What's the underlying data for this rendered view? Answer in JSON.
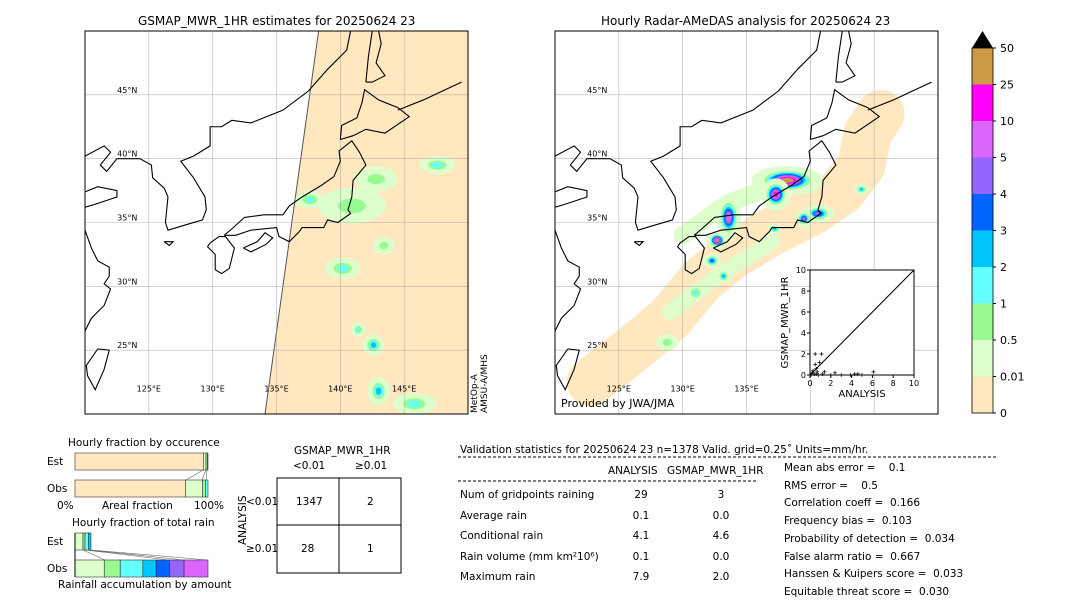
{
  "left_map": {
    "title": "GSMAP_MWR_1HR estimates for 20250624 23",
    "sensor_line1": "MetOp-A",
    "sensor_line2": "AMSU-A/MHS"
  },
  "right_map": {
    "title": "Hourly Radar-AMeDAS analysis for 20250624 23",
    "credit": "Provided by JWA/JMA"
  },
  "map_extent": {
    "lon": [
      120,
      150
    ],
    "lat": [
      20,
      50
    ]
  },
  "lat_labels": [
    "25°N",
    "30°N",
    "35°N",
    "40°N",
    "45°N"
  ],
  "lat_values": [
    25,
    30,
    35,
    40,
    45
  ],
  "lon_labels": [
    "125°E",
    "130°E",
    "135°E",
    "140°E",
    "145°E"
  ],
  "lon_values": [
    125,
    130,
    135,
    140,
    145
  ],
  "colorbar": {
    "labels": [
      "0",
      "0.01",
      "0.5",
      "1",
      "2",
      "3",
      "4",
      "5",
      "10",
      "25",
      "50"
    ],
    "colors": [
      "#ffe8c0",
      "#dcffcc",
      "#98fa90",
      "#64ffff",
      "#00c8ff",
      "#0064ff",
      "#9664ff",
      "#dc64ff",
      "#ff00ff",
      "#cc9944"
    ],
    "extend": "max"
  },
  "rain_cells": {
    "left": [
      [
        141.1,
        36.3,
        1.1,
        0.5,
        5
      ],
      [
        140.9,
        36.3,
        1.9,
        1.0,
        1
      ],
      [
        140.2,
        31.4,
        1.0,
        0.6,
        2
      ],
      [
        142.6,
        25.4,
        0.6,
        0.6,
        3
      ],
      [
        143,
        21.8,
        0.6,
        0.8,
        3
      ],
      [
        145.8,
        20.8,
        1.2,
        0.6,
        2
      ],
      [
        143.4,
        33.2,
        0.6,
        0.5,
        1
      ],
      [
        137.6,
        36.8,
        0.8,
        0.5,
        2
      ],
      [
        142.8,
        38.4,
        1.2,
        0.7,
        1
      ],
      [
        147.6,
        39.5,
        1.0,
        0.5,
        2
      ],
      [
        141.4,
        26.6,
        0.4,
        0.4,
        2
      ]
    ],
    "right": [
      [
        138.2,
        38.3,
        2.0,
        0.8,
        8
      ],
      [
        137.3,
        37.2,
        0.8,
        0.9,
        7
      ],
      [
        133.6,
        35.4,
        0.7,
        1.3,
        6
      ],
      [
        132.7,
        33.6,
        0.6,
        0.5,
        8
      ],
      [
        140.6,
        35.7,
        0.9,
        0.5,
        5
      ],
      [
        139.5,
        35.3,
        0.5,
        0.5,
        5
      ],
      [
        144,
        37.6,
        0.4,
        0.3,
        3
      ],
      [
        132.3,
        32.0,
        0.5,
        0.4,
        4
      ],
      [
        133.2,
        30.8,
        0.4,
        0.4,
        3
      ],
      [
        131,
        29.5,
        0.5,
        0.5,
        2
      ],
      [
        128.8,
        25.6,
        0.6,
        0.5,
        1
      ],
      [
        137.2,
        34.5,
        0.4,
        0.3,
        3
      ]
    ]
  },
  "chart_data": [
    {
      "type": "scatter",
      "xlabel": "ANALYSIS",
      "ylabel": "GSMAP_MWR_1HR",
      "xlim": [
        0,
        10
      ],
      "ylim": [
        0,
        10
      ],
      "x_ticks": [
        "0",
        "2",
        "4",
        "6",
        "8",
        "10"
      ],
      "y_ticks": [
        "0",
        "2",
        "4",
        "6",
        "8",
        "10"
      ],
      "points": [
        [
          0.5,
          2.0
        ],
        [
          1.1,
          2.0
        ],
        [
          0.5,
          1.0
        ],
        [
          0.9,
          1.2
        ],
        [
          0.3,
          0.4
        ],
        [
          0.6,
          0.6
        ],
        [
          0.2,
          0.2
        ],
        [
          0.4,
          0.1
        ],
        [
          0.7,
          0.3
        ],
        [
          1.4,
          0.3
        ],
        [
          2.4,
          0.2
        ],
        [
          3.9,
          0.0
        ],
        [
          4.3,
          0.1
        ],
        [
          4.6,
          0.1
        ],
        [
          6.1,
          0.3
        ],
        [
          0.1,
          0.0
        ],
        [
          0.8,
          0.0
        ],
        [
          1.2,
          0.1
        ],
        [
          2.0,
          0.0
        ],
        [
          3.0,
          0.0
        ],
        [
          5.0,
          0.0
        ],
        [
          0.6,
          0.1
        ]
      ],
      "diagonal": true
    },
    {
      "type": "bar",
      "title": "Hourly fraction by occurence",
      "xlabel": "Areal fraction",
      "x_ticks": [
        "0%",
        "100%"
      ],
      "categories": [
        "Est",
        "Obs"
      ],
      "segments": {
        "Est": [
          0.965,
          0.02,
          0.01,
          0.005
        ],
        "Obs": [
          0.83,
          0.13,
          0.02,
          0.02
        ]
      }
    },
    {
      "type": "bar",
      "title": "Hourly fraction of total rain",
      "xlabel": "Rainfall accumulation by amount",
      "categories": [
        "Est",
        "Obs"
      ],
      "segments": {
        "Est": [
          0.06,
          0.015,
          0.025,
          0.02
        ],
        "Obs": [
          0.22,
          0.12,
          0.17,
          0.1,
          0.1,
          0.11,
          0.18
        ]
      }
    }
  ],
  "contingency": {
    "title": "GSMAP_MWR_1HR",
    "col_headers": [
      "<0.01",
      "≥0.01"
    ],
    "row_label": "ANALYSIS",
    "row_headers": [
      "<0.01",
      "≥0.01"
    ],
    "cells": [
      [
        "1347",
        "2"
      ],
      [
        "28",
        "1"
      ]
    ]
  },
  "validation": {
    "header": "Validation statistics for 20250624 23  n=1378 Valid. grid=0.25˚ Units=mm/hr.",
    "col_headers": [
      "ANALYSIS",
      "GSMAP_MWR_1HR"
    ],
    "rows": [
      {
        "label": "Num of gridpoints raining",
        "a": "29",
        "b": "3"
      },
      {
        "label": "Average rain",
        "a": "0.1",
        "b": "0.0"
      },
      {
        "label": "Conditional rain",
        "a": "4.1",
        "b": "4.6"
      },
      {
        "label": "Rain volume (mm km²10⁶)",
        "a": "0.1",
        "b": "0.0"
      },
      {
        "label": "Maximum rain",
        "a": "7.9",
        "b": "2.0"
      }
    ],
    "scores": [
      "Mean abs error =    0.1",
      "RMS error =    0.5",
      "Correlation coeff =  0.166",
      "Frequency bias =  0.103",
      "Probability of detection =  0.034",
      "False alarm ratio =  0.667",
      "Hanssen & Kuipers score =  0.033",
      "Equitable threat score =  0.030"
    ]
  }
}
